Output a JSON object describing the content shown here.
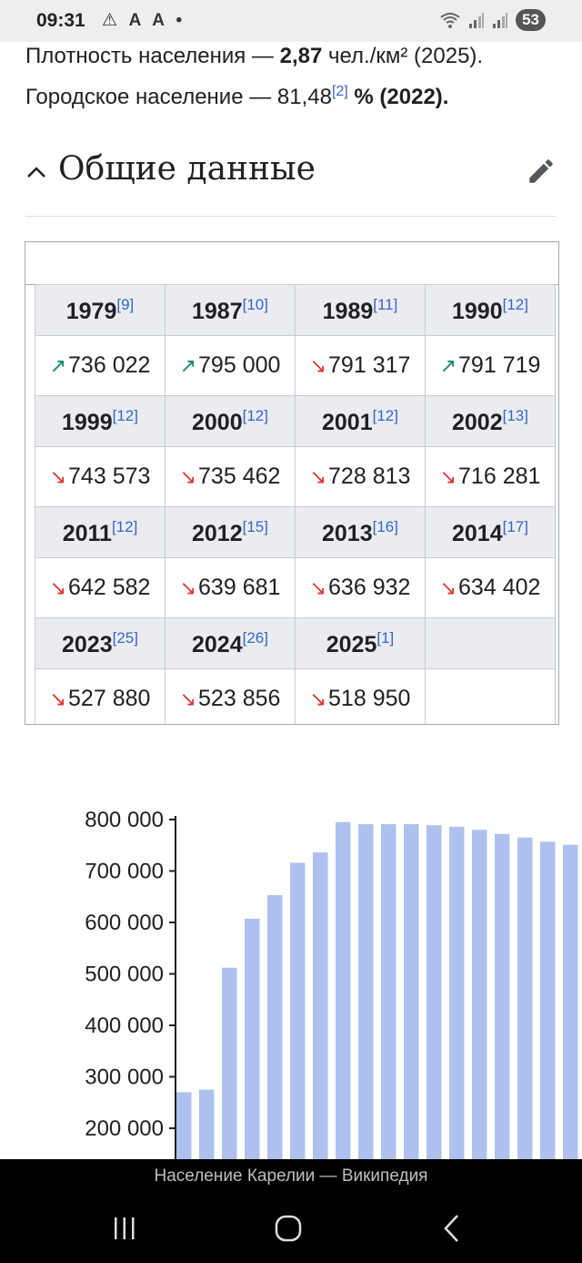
{
  "status_bar": {
    "time": "09:31",
    "icons": "⚠ A A •",
    "battery": "53"
  },
  "intro": {
    "density_prefix": "Плотность населения — ",
    "density_value": "2,87",
    "density_suffix": " чел./км² (2025).",
    "urban_prefix": "Городское население — 81,48",
    "urban_ref": "[2]",
    "urban_suffix": " % (2022)."
  },
  "section": {
    "title": "Общие данные"
  },
  "population_table": [
    {
      "years": [
        {
          "year": "1979",
          "ref": "[9]"
        },
        {
          "year": "1987",
          "ref": "[10]"
        },
        {
          "year": "1989",
          "ref": "[11]"
        },
        {
          "year": "1990",
          "ref": "[12]"
        }
      ],
      "values": [
        {
          "trend": "up",
          "value": "736 022"
        },
        {
          "trend": "up",
          "value": "795 000"
        },
        {
          "trend": "down",
          "value": "791 317"
        },
        {
          "trend": "up",
          "value": "791 719"
        }
      ]
    },
    {
      "years": [
        {
          "year": "1999",
          "ref": "[12]"
        },
        {
          "year": "2000",
          "ref": "[12]"
        },
        {
          "year": "2001",
          "ref": "[12]"
        },
        {
          "year": "2002",
          "ref": "[13]"
        }
      ],
      "values": [
        {
          "trend": "down",
          "value": "743 573"
        },
        {
          "trend": "down",
          "value": "735 462"
        },
        {
          "trend": "down",
          "value": "728 813"
        },
        {
          "trend": "down",
          "value": "716 281"
        }
      ]
    },
    {
      "years": [
        {
          "year": "2011",
          "ref": "[12]"
        },
        {
          "year": "2012",
          "ref": "[15]"
        },
        {
          "year": "2013",
          "ref": "[16]"
        },
        {
          "year": "2014",
          "ref": "[17]"
        }
      ],
      "values": [
        {
          "trend": "down",
          "value": "642 582"
        },
        {
          "trend": "down",
          "value": "639 681"
        },
        {
          "trend": "down",
          "value": "636 932"
        },
        {
          "trend": "down",
          "value": "634 402"
        }
      ]
    },
    {
      "years": [
        {
          "year": "2023",
          "ref": "[25]"
        },
        {
          "year": "2024",
          "ref": "[26]"
        },
        {
          "year": "2025",
          "ref": "[1]"
        },
        {
          "year": "",
          "ref": ""
        }
      ],
      "values": [
        {
          "trend": "down",
          "value": "527 880"
        },
        {
          "trend": "down",
          "value": "523 856"
        },
        {
          "trend": "down",
          "value": "518 950"
        },
        {
          "trend": "",
          "value": ""
        }
      ]
    }
  ],
  "chart_data": {
    "type": "bar",
    "title": "",
    "xlabel": "",
    "ylabel": "",
    "ylim": [
      100000,
      800000
    ],
    "y_ticks": [
      "800 000",
      "700 000",
      "600 000",
      "500 000",
      "400 000",
      "300 000",
      "200 000"
    ],
    "y_tick_values": [
      800000,
      700000,
      600000,
      500000,
      400000,
      300000,
      200000
    ],
    "values": [
      270000,
      275000,
      512000,
      607000,
      653000,
      716000,
      736000,
      795000,
      791000,
      791000,
      791000,
      789000,
      786000,
      780000,
      772000,
      765000,
      757000,
      751000
    ],
    "colors": {
      "bar": "#aec1ee",
      "axis": "#202122"
    }
  },
  "footer": {
    "page_title": "Население Карелии — Википедия"
  },
  "arrows": {
    "up": "↗",
    "down": "↘"
  }
}
